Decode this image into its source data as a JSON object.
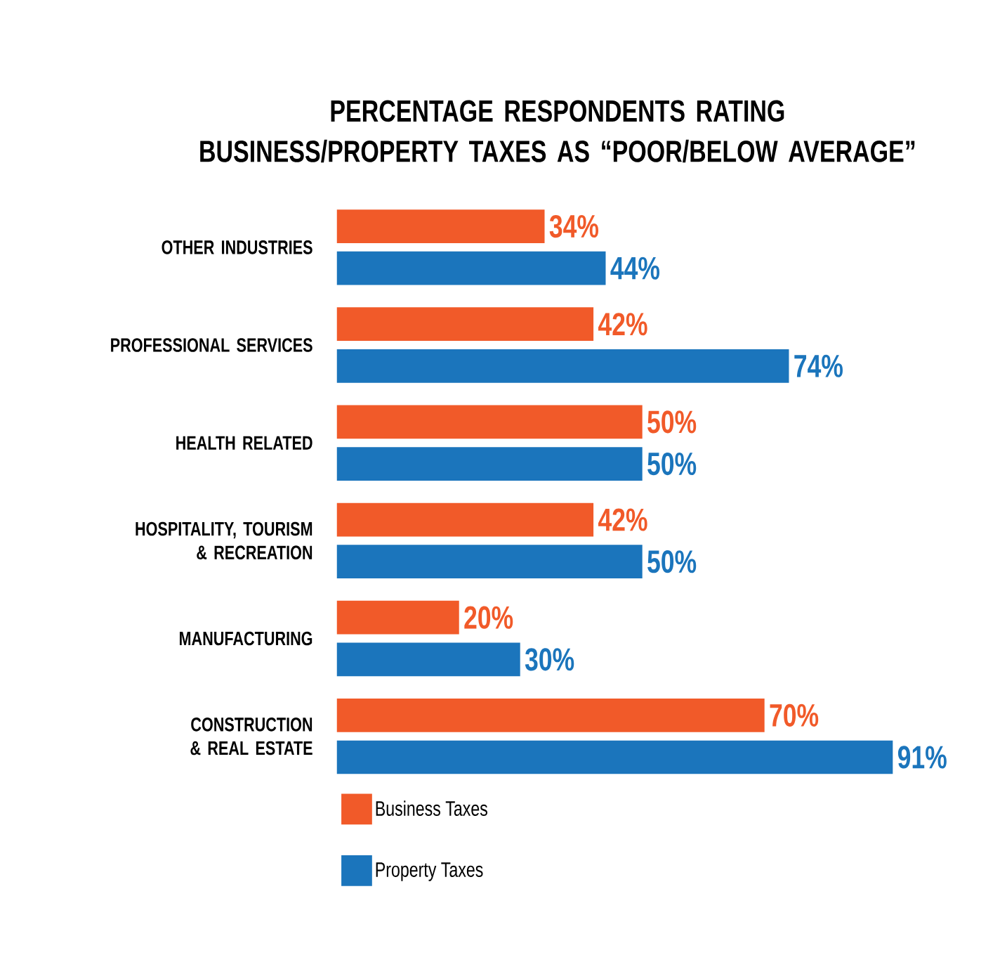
{
  "chart_data": {
    "type": "bar",
    "orientation": "horizontal",
    "title": "PERCENTAGE RESPONDENTS RATING BUSINESS/PROPERTY TAXES AS “POOR/BELOW AVERAGE”",
    "categories": [
      "OTHER INDUSTRIES",
      "PROFESSIONAL SERVICES",
      "HEALTH RELATED",
      "HOSPITALITY, TOURISM & RECREATION",
      "MANUFACTURING",
      "CONSTRUCTION & REAL ESTATE"
    ],
    "series": [
      {
        "name": "Business Taxes",
        "color": "#f15a29",
        "values": [
          34,
          42,
          50,
          42,
          20,
          70
        ],
        "value_labels": [
          "34%",
          "42%",
          "50%",
          "42%",
          "20%",
          "70%"
        ]
      },
      {
        "name": "Property Taxes",
        "color": "#1b75bc",
        "values": [
          44,
          74,
          50,
          50,
          30,
          91
        ],
        "value_labels": [
          "44%",
          "74%",
          "50%",
          "50%",
          "30%",
          "91%"
        ]
      }
    ],
    "legend": "bottom"
  }
}
